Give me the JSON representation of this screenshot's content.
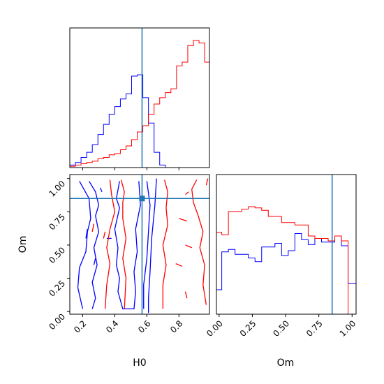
{
  "chart_data": {
    "type": "corner",
    "parameters": [
      "H0",
      "Om"
    ],
    "xlabel": "H0",
    "ylabel": "Om",
    "xlabel_right": "Om",
    "truth": {
      "H0": 0.57,
      "Om": 0.85
    },
    "colors": {
      "blue": "#0000ff",
      "red": "#ff0000",
      "truth": "#1f77b4"
    },
    "ticks": {
      "H0": [
        "0.2",
        "0.4",
        "0.6",
        "0.8"
      ],
      "Om": [
        "0.00",
        "0.25",
        "0.50",
        "0.75",
        "1.00"
      ]
    },
    "ranges": {
      "H0": [
        0.12,
        0.99
      ],
      "Om": [
        -0.02,
        1.03
      ]
    },
    "hist_H0": {
      "bin_edges": [
        0.12,
        0.155,
        0.19,
        0.225,
        0.26,
        0.295,
        0.33,
        0.365,
        0.4,
        0.435,
        0.47,
        0.505,
        0.54,
        0.575,
        0.61,
        0.645,
        0.68,
        0.715,
        0.75,
        0.785,
        0.82,
        0.855,
        0.89,
        0.925,
        0.96,
        0.99
      ],
      "blue": [
        0.02,
        0.04,
        0.08,
        0.12,
        0.18,
        0.26,
        0.34,
        0.42,
        0.48,
        0.54,
        0.58,
        0.72,
        0.73,
        0.55,
        0.35,
        0.12,
        0.02,
        0,
        0,
        0,
        0,
        0,
        0,
        0,
        0
      ],
      "red": [
        0.01,
        0.02,
        0.03,
        0.04,
        0.05,
        0.07,
        0.08,
        0.1,
        0.11,
        0.14,
        0.17,
        0.22,
        0.28,
        0.33,
        0.42,
        0.5,
        0.55,
        0.59,
        0.62,
        0.8,
        0.83,
        0.96,
        1.0,
        0.98,
        0.83
      ]
    },
    "hist_Om": {
      "bin_edges": [
        -0.02,
        0.02,
        0.07,
        0.12,
        0.17,
        0.22,
        0.27,
        0.32,
        0.37,
        0.42,
        0.47,
        0.52,
        0.57,
        0.62,
        0.67,
        0.72,
        0.77,
        0.82,
        0.87,
        0.92,
        0.97,
        1.03
      ],
      "blue": [
        0.2,
        0.51,
        0.53,
        0.49,
        0.49,
        0.46,
        0.43,
        0.55,
        0.55,
        0.58,
        0.48,
        0.52,
        0.66,
        0.61,
        0.57,
        0.62,
        0.59,
        0.59,
        0.64,
        0.56,
        0.25
      ],
      "red": [
        0.67,
        0.65,
        0.84,
        0.84,
        0.86,
        0.88,
        0.87,
        0.85,
        0.8,
        0.8,
        0.75,
        0.75,
        0.73,
        0.73,
        0.64,
        0.62,
        0.62,
        0.6,
        0.64,
        0.6,
        0.0
      ]
    },
    "contours_blue": [
      [
        [
          0.18,
          0.98
        ],
        [
          0.24,
          0.85
        ],
        [
          0.25,
          0.7
        ],
        [
          0.23,
          0.6
        ],
        [
          0.22,
          0.45
        ],
        [
          0.18,
          0.33
        ],
        [
          0.17,
          0.18
        ],
        [
          0.2,
          0.02
        ]
      ],
      [
        [
          0.24,
          0.98
        ],
        [
          0.28,
          0.9
        ],
        [
          0.3,
          0.8
        ],
        [
          0.28,
          0.72
        ],
        [
          0.3,
          0.6
        ],
        [
          0.27,
          0.48
        ],
        [
          0.29,
          0.35
        ],
        [
          0.26,
          0.22
        ],
        [
          0.28,
          0.1
        ],
        [
          0.26,
          0.02
        ]
      ],
      [
        [
          0.43,
          0.98
        ],
        [
          0.41,
          0.85
        ],
        [
          0.43,
          0.78
        ],
        [
          0.4,
          0.62
        ],
        [
          0.42,
          0.48
        ],
        [
          0.41,
          0.35
        ],
        [
          0.43,
          0.25
        ],
        [
          0.42,
          0.15
        ],
        [
          0.45,
          0.02
        ],
        [
          0.52,
          0.02
        ],
        [
          0.53,
          0.15
        ],
        [
          0.52,
          0.3
        ],
        [
          0.54,
          0.45
        ],
        [
          0.53,
          0.62
        ],
        [
          0.56,
          0.8
        ],
        [
          0.55,
          0.98
        ]
      ],
      [
        [
          0.6,
          0.98
        ],
        [
          0.62,
          0.8
        ],
        [
          0.61,
          0.6
        ],
        [
          0.6,
          0.4
        ],
        [
          0.58,
          0.2
        ],
        [
          0.58,
          0.02
        ]
      ],
      [
        [
          0.66,
          1.0
        ],
        [
          0.65,
          0.8
        ],
        [
          0.63,
          0.55
        ],
        [
          0.62,
          0.3
        ],
        [
          0.61,
          0.1
        ],
        [
          0.61,
          -0.01
        ]
      ],
      [
        [
          0.23,
          0.62
        ],
        [
          0.22,
          0.55
        ]
      ],
      [
        [
          0.28,
          0.4
        ],
        [
          0.27,
          0.35
        ]
      ],
      [
        [
          0.31,
          0.93
        ],
        [
          0.32,
          0.9
        ]
      ],
      [
        [
          0.35,
          0.55
        ],
        [
          0.38,
          0.55
        ]
      ]
    ],
    "contours_red": [
      [
        [
          0.37,
          0.99
        ],
        [
          0.38,
          0.88
        ],
        [
          0.4,
          0.75
        ],
        [
          0.37,
          0.62
        ],
        [
          0.35,
          0.48
        ],
        [
          0.37,
          0.36
        ],
        [
          0.35,
          0.2
        ],
        [
          0.34,
          0.02
        ]
      ],
      [
        [
          0.44,
          0.99
        ],
        [
          0.46,
          0.9
        ],
        [
          0.45,
          0.82
        ],
        [
          0.45,
          0.7
        ],
        [
          0.47,
          0.55
        ],
        [
          0.45,
          0.4
        ],
        [
          0.47,
          0.25
        ],
        [
          0.46,
          0.02
        ]
      ],
      [
        [
          0.71,
          0.99
        ],
        [
          0.73,
          0.9
        ],
        [
          0.72,
          0.78
        ],
        [
          0.73,
          0.65
        ],
        [
          0.7,
          0.5
        ],
        [
          0.72,
          0.35
        ],
        [
          0.7,
          0.2
        ],
        [
          0.7,
          0.02
        ]
      ],
      [
        [
          0.91,
          0.99
        ],
        [
          0.88,
          0.92
        ],
        [
          0.89,
          0.82
        ],
        [
          0.92,
          0.72
        ],
        [
          0.95,
          0.6
        ],
        [
          0.93,
          0.48
        ],
        [
          0.96,
          0.35
        ],
        [
          0.95,
          0.2
        ],
        [
          0.97,
          0.05
        ]
      ],
      [
        [
          0.86,
          0.9
        ],
        [
          0.84,
          0.88
        ]
      ],
      [
        [
          0.8,
          0.7
        ],
        [
          0.85,
          0.68
        ]
      ],
      [
        [
          0.84,
          0.5
        ],
        [
          0.88,
          0.48
        ]
      ],
      [
        [
          0.78,
          0.36
        ],
        [
          0.82,
          0.34
        ]
      ],
      [
        [
          0.84,
          0.15
        ],
        [
          0.85,
          0.1
        ]
      ],
      [
        [
          0.26,
          0.6
        ],
        [
          0.27,
          0.66
        ]
      ],
      [
        [
          0.33,
          0.55
        ],
        [
          0.34,
          0.6
        ]
      ],
      [
        [
          0.97,
          0.95
        ],
        [
          0.98,
          1.0
        ]
      ]
    ]
  }
}
